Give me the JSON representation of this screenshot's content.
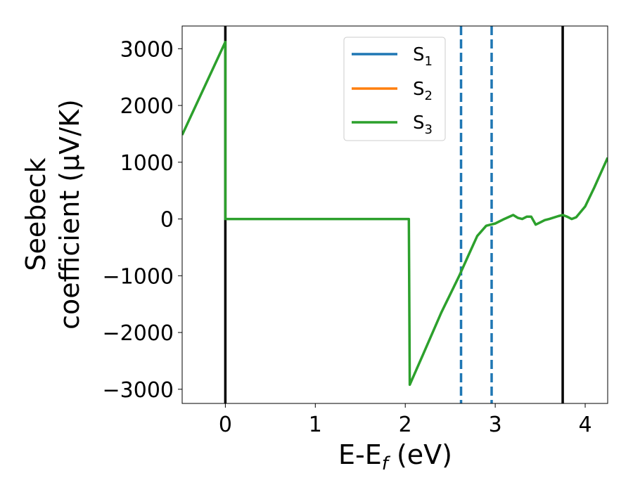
{
  "chart_data": {
    "type": "line",
    "xlabel": "E-E",
    "xlabel_sub": "f",
    "xlabel_unit": " (eV)",
    "ylabel_line1": "Seebeck",
    "ylabel_line2": "coefficient  (μV/K)",
    "xlim": [
      -0.48,
      4.25
    ],
    "ylim": [
      -3250,
      3400
    ],
    "xticks": [
      0,
      1,
      2,
      3,
      4
    ],
    "xtick_labels": [
      "0",
      "1",
      "2",
      "3",
      "4"
    ],
    "yticks": [
      3000,
      2000,
      1000,
      0,
      -1000,
      -2000,
      -3000
    ],
    "ytick_labels": [
      "3000",
      "2000",
      "1000",
      "0",
      "−1000",
      "−2000",
      "−3000"
    ],
    "legend_position": "upper-center",
    "series": [
      {
        "name": "S",
        "sub": "1",
        "color": "#1f77b4"
      },
      {
        "name": "S",
        "sub": "2",
        "color": "#ff7f0e"
      },
      {
        "name": "S",
        "sub": "3",
        "color": "#2ca02c"
      }
    ],
    "line": {
      "color": "#2ca02c",
      "x": [
        -0.48,
        0.0,
        0.0,
        2.04,
        2.04,
        2.05,
        2.2,
        2.4,
        2.6,
        2.7,
        2.8,
        2.9,
        3.0,
        3.1,
        3.2,
        3.25,
        3.3,
        3.35,
        3.4,
        3.45,
        3.5,
        3.55,
        3.6,
        3.7,
        3.75,
        3.8,
        3.85,
        3.9,
        4.0,
        4.1,
        4.25
      ],
      "y": [
        1480,
        3120,
        0,
        0,
        -5,
        -2920,
        -2380,
        -1650,
        -1000,
        -650,
        -300,
        -120,
        -80,
        0,
        70,
        20,
        0,
        40,
        40,
        -100,
        -60,
        -20,
        0,
        50,
        70,
        40,
        0,
        30,
        220,
        550,
        1080
      ]
    },
    "vlines_black": [
      0.0,
      3.75
    ],
    "vlines_dashed": [
      2.62,
      2.96
    ],
    "vline_black_color": "#000000",
    "vline_dashed_color": "#1f77b4"
  }
}
